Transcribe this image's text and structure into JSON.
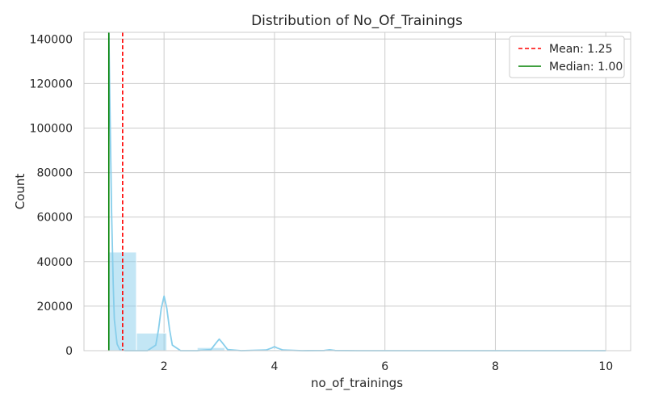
{
  "chart_data": {
    "type": "histogram",
    "title": "Distribution of No_Of_Trainings",
    "xlabel": "no_of_trainings",
    "ylabel": "Count",
    "xlim": [
      0.55,
      10.45
    ],
    "ylim": [
      0,
      143000
    ],
    "x_ticks": [
      2,
      4,
      6,
      8,
      10
    ],
    "x_tick_labels": [
      "2",
      "4",
      "6",
      "8",
      "10"
    ],
    "y_ticks": [
      0,
      20000,
      40000,
      60000,
      80000,
      100000,
      120000,
      140000
    ],
    "y_tick_labels": [
      "0",
      "20000",
      "40000",
      "60000",
      "80000",
      "100000",
      "120000",
      "140000"
    ],
    "grid": true,
    "legend_position": "top-right",
    "bars": [
      {
        "x0": 1.0,
        "x1": 1.5,
        "value": 44300
      },
      {
        "x0": 1.5,
        "x1": 2.05,
        "value": 7900
      },
      {
        "x0": 2.6,
        "x1": 3.1,
        "value": 1400
      },
      {
        "x0": 3.6,
        "x1": 4.1,
        "value": 450
      },
      {
        "x0": 4.6,
        "x1": 5.1,
        "value": 100
      },
      {
        "x0": 5.6,
        "x1": 6.1,
        "value": 45
      },
      {
        "x0": 6.6,
        "x1": 7.1,
        "value": 15
      },
      {
        "x0": 7.6,
        "x1": 8.1,
        "value": 6
      },
      {
        "x0": 8.6,
        "x1": 9.1,
        "value": 4
      },
      {
        "x0": 9.6,
        "x1": 10.1,
        "value": 5
      }
    ],
    "kde": {
      "x": [
        1.0,
        1.02,
        1.05,
        1.08,
        1.1,
        1.15,
        1.2,
        1.3,
        1.5,
        1.7,
        1.85,
        1.9,
        1.95,
        2.0,
        2.05,
        2.1,
        2.15,
        2.3,
        2.6,
        2.85,
        2.95,
        3.0,
        3.05,
        3.15,
        3.4,
        3.85,
        3.95,
        4.0,
        4.05,
        4.15,
        4.5,
        4.9,
        5.0,
        5.1,
        5.5,
        6.0,
        7.0,
        8.0,
        9.0,
        10.0
      ],
      "y": [
        143000,
        110000,
        62000,
        30000,
        14000,
        3000,
        400,
        0,
        0,
        0,
        2500,
        9500,
        19000,
        24500,
        19000,
        9500,
        2500,
        0,
        0,
        500,
        3700,
        5200,
        3700,
        500,
        0,
        300,
        1200,
        1800,
        1200,
        300,
        0,
        80,
        400,
        80,
        0,
        0,
        0,
        0,
        0,
        0
      ]
    },
    "mean": {
      "value": 1.25,
      "label": "Mean: 1.25",
      "color": "#ff0000",
      "style": "dashed"
    },
    "median": {
      "value": 1.0,
      "label": "Median: 1.00",
      "color": "#008000",
      "style": "solid"
    },
    "colors": {
      "bar": "#87ceeb",
      "bar_alpha": 0.5,
      "kde": "#87ceeb",
      "grid": "#cccccc",
      "text": "#262626"
    }
  }
}
